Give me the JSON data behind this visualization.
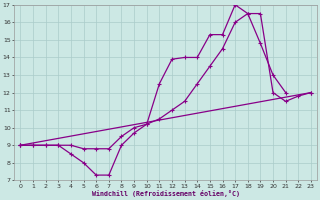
{
  "xlabel": "Windchill (Refroidissement éolien,°C)",
  "background_color": "#cce8e4",
  "grid_color": "#aaccca",
  "line_color": "#880088",
  "xlim": [
    -0.5,
    23.5
  ],
  "ylim": [
    7,
    17
  ],
  "xticks": [
    0,
    1,
    2,
    3,
    4,
    5,
    6,
    7,
    8,
    9,
    10,
    11,
    12,
    13,
    14,
    15,
    16,
    17,
    18,
    19,
    20,
    21,
    22,
    23
  ],
  "yticks": [
    7,
    8,
    9,
    10,
    11,
    12,
    13,
    14,
    15,
    16,
    17
  ],
  "line1_x": [
    0,
    1,
    2,
    3,
    4,
    5,
    6,
    7,
    8,
    9,
    10,
    11,
    12,
    13,
    14,
    15,
    16,
    17,
    18,
    19,
    20,
    21
  ],
  "line1_y": [
    9,
    9,
    9,
    9,
    8.5,
    8.0,
    7.3,
    7.3,
    9.0,
    9.7,
    10.2,
    12.5,
    13.9,
    14.0,
    14.0,
    15.3,
    15.3,
    17.0,
    16.5,
    14.8,
    13.0,
    12.0
  ],
  "line2_x": [
    0,
    1,
    2,
    3,
    4,
    5,
    6,
    7,
    8,
    9,
    10,
    11,
    12,
    13,
    14,
    15,
    16,
    17,
    18,
    19,
    20,
    21,
    22,
    23
  ],
  "line2_y": [
    9,
    9,
    9,
    9,
    9,
    8.8,
    8.8,
    8.8,
    9.5,
    10.0,
    10.2,
    10.5,
    11.0,
    11.5,
    12.5,
    13.5,
    14.5,
    16.0,
    16.5,
    16.5,
    12.0,
    11.5,
    11.8,
    12.0
  ],
  "line3_x": [
    0,
    23
  ],
  "line3_y": [
    9,
    12
  ]
}
